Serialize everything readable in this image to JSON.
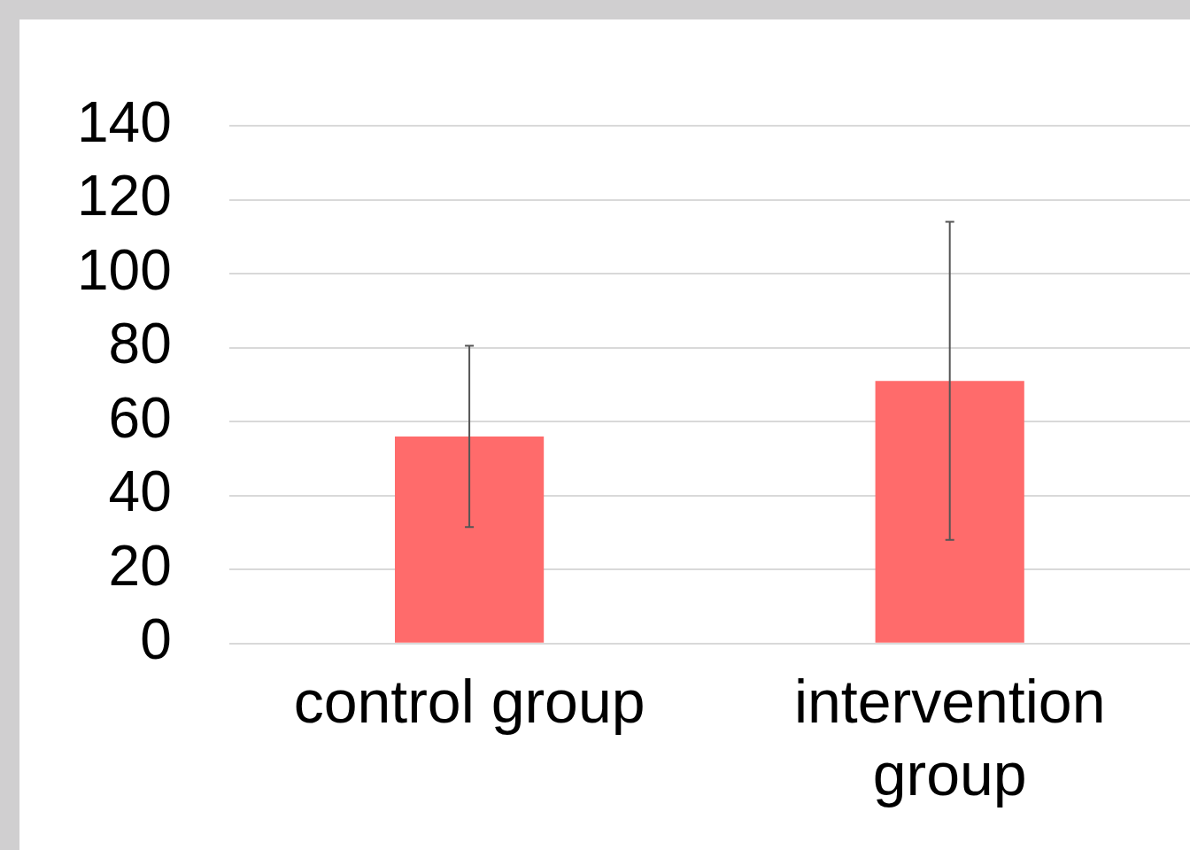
{
  "chart_data": {
    "type": "bar",
    "categories": [
      "control group",
      "intervention group"
    ],
    "values": [
      56,
      71
    ],
    "errors": [
      24.5,
      43
    ],
    "color": "#ff6b6b",
    "ylim": [
      0,
      140
    ],
    "yticks": [
      0,
      20,
      40,
      60,
      80,
      100,
      120,
      140
    ],
    "grid": "y",
    "legend": false
  }
}
